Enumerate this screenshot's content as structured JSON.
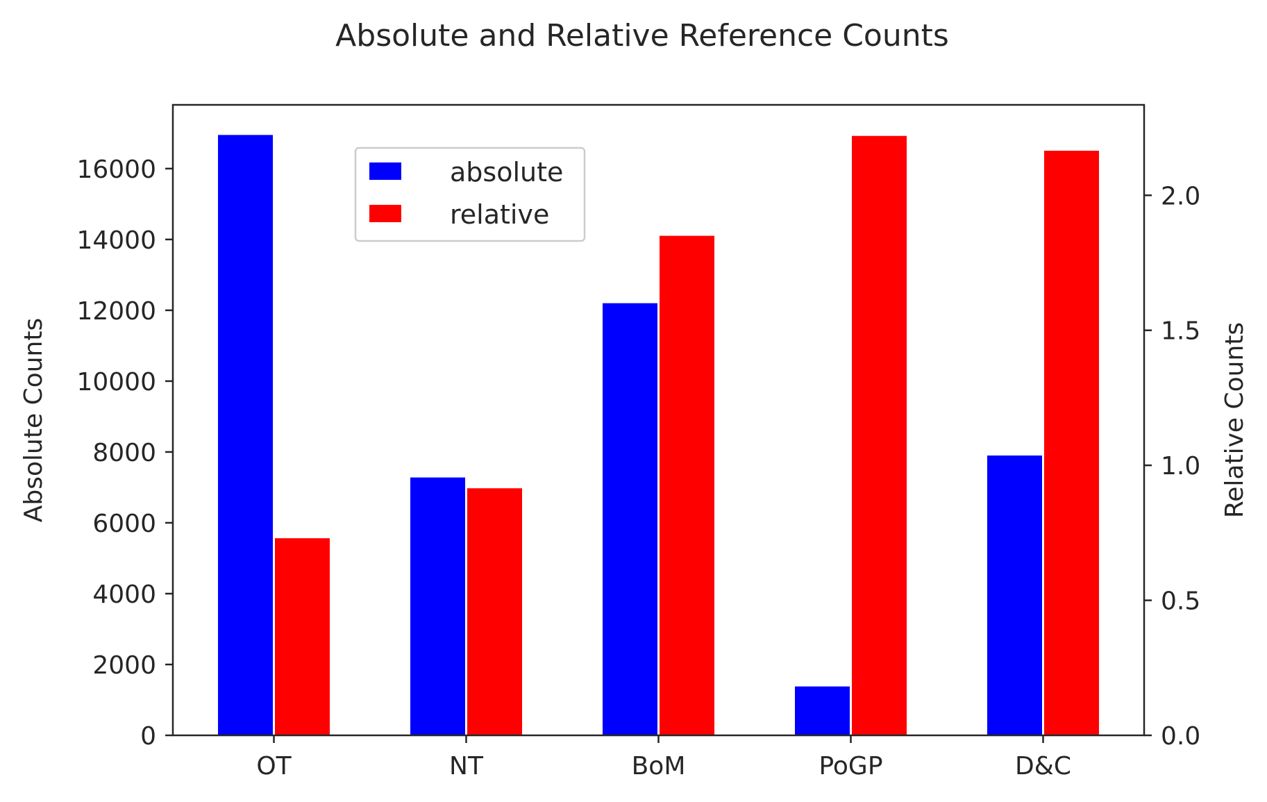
{
  "chart_data": {
    "type": "bar",
    "title": "Absolute and Relative Reference Counts",
    "categories": [
      "OT",
      "NT",
      "BoM",
      "PoGP",
      "D&C"
    ],
    "series": [
      {
        "name": "absolute",
        "axis": "left",
        "color": "#0000ff",
        "values": [
          16950,
          7280,
          12200,
          1380,
          7900
        ]
      },
      {
        "name": "relative",
        "axis": "right",
        "color": "#ff0000",
        "values": [
          0.73,
          0.915,
          1.85,
          2.22,
          2.165
        ]
      }
    ],
    "ylabel_left": "Absolute Counts",
    "ylabel_right": "Relative Counts",
    "ylim_left": [
      0,
      17800
    ],
    "ylim_right": [
      0,
      2.335
    ],
    "yticks_left": [
      "0",
      "2000",
      "4000",
      "6000",
      "8000",
      "10000",
      "12000",
      "14000",
      "16000"
    ],
    "yticks_right": [
      "0.0",
      "0.5",
      "1.0",
      "1.5",
      "2.0"
    ],
    "legend_position": "upper-center-left",
    "grid": false
  }
}
